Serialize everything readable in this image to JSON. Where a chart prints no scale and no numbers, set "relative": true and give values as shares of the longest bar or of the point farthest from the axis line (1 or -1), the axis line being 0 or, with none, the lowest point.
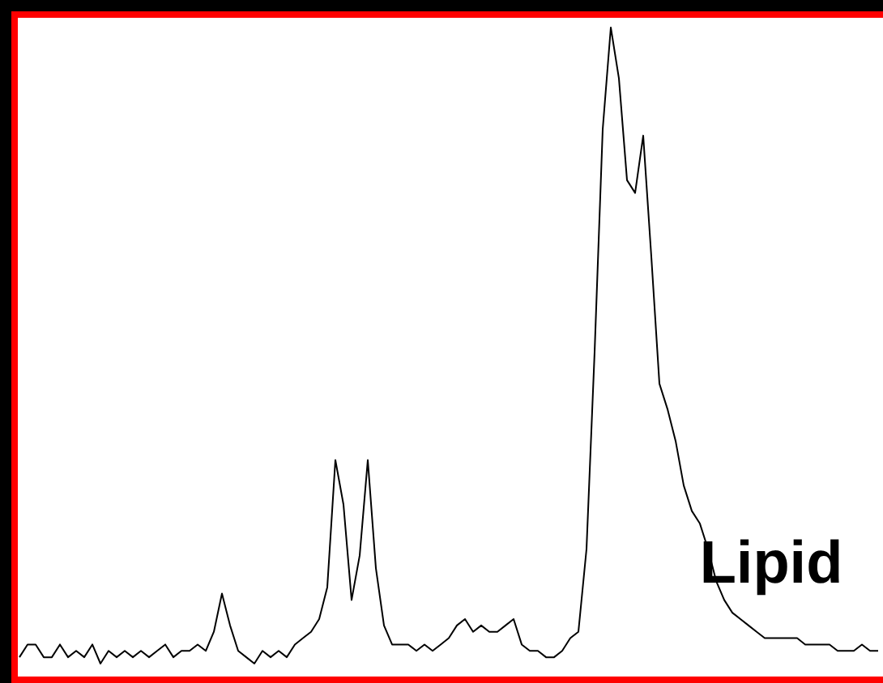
{
  "chart_data": {
    "type": "line",
    "relative": true,
    "categories": [
      null,
      null,
      null,
      null,
      null,
      null,
      null,
      null,
      null,
      null,
      null,
      null,
      null,
      null,
      null,
      null,
      null,
      null,
      null,
      null,
      null,
      null,
      null,
      null,
      null,
      null,
      null,
      null,
      null,
      null,
      null,
      null,
      null,
      null,
      null,
      null,
      null,
      null,
      null,
      null,
      null,
      null,
      null,
      null,
      null,
      null,
      null,
      null,
      null,
      null,
      null,
      null,
      null,
      null,
      null,
      null,
      null,
      null,
      null,
      null,
      null,
      null,
      null,
      null,
      null,
      null,
      null,
      null,
      null,
      null,
      null,
      null,
      null,
      null,
      null,
      null,
      null,
      null,
      null,
      null,
      null,
      null,
      null,
      null,
      null,
      null,
      null,
      null,
      null,
      null,
      null,
      null,
      null,
      null,
      null,
      null,
      null,
      null,
      null,
      null,
      null,
      null,
      null,
      null,
      null,
      null,
      null
    ],
    "series": [
      {
        "color": "#000000",
        "values": [
          0.01,
          0.03,
          0.03,
          0.01,
          0.01,
          0.03,
          0.01,
          0.02,
          0.01,
          0.03,
          0.0,
          0.02,
          0.01,
          0.02,
          0.01,
          0.02,
          0.01,
          0.02,
          0.03,
          0.01,
          0.02,
          0.02,
          0.03,
          0.02,
          0.05,
          0.11,
          0.06,
          0.02,
          0.01,
          0,
          0.02,
          0.01,
          0.02,
          0.01,
          0.03,
          0.04,
          0.05,
          0.07,
          0.12,
          0.32,
          0.25,
          0.1,
          0.17,
          0.32,
          0.15,
          0.06,
          0.03,
          0.03,
          0.03,
          0.02,
          0.03,
          0.02,
          0.03,
          0.04,
          0.06,
          0.07,
          0.05,
          0.06,
          0.05,
          0.05,
          0.06,
          0.07,
          0.03,
          0.02,
          0.02,
          0.01,
          0.01,
          0.02,
          0.04,
          0.05,
          0.18,
          0.49,
          0.84,
          1,
          0.92,
          0.76,
          0.74,
          0.83,
          0.64,
          0.44,
          0.4,
          0.35,
          0.28,
          0.24,
          0.22,
          0.18,
          0.13,
          0.1,
          0.08,
          0.07,
          0.06,
          0.05,
          0.04,
          0.04,
          0.04,
          0.04,
          0.04,
          0.03,
          0.03,
          0.03,
          0.03,
          0.02,
          0.02,
          0.02,
          0.03,
          0.02,
          0.02
        ]
      }
    ],
    "annotations": [
      "Lipid"
    ],
    "marker": "none",
    "line_style": "solid"
  }
}
